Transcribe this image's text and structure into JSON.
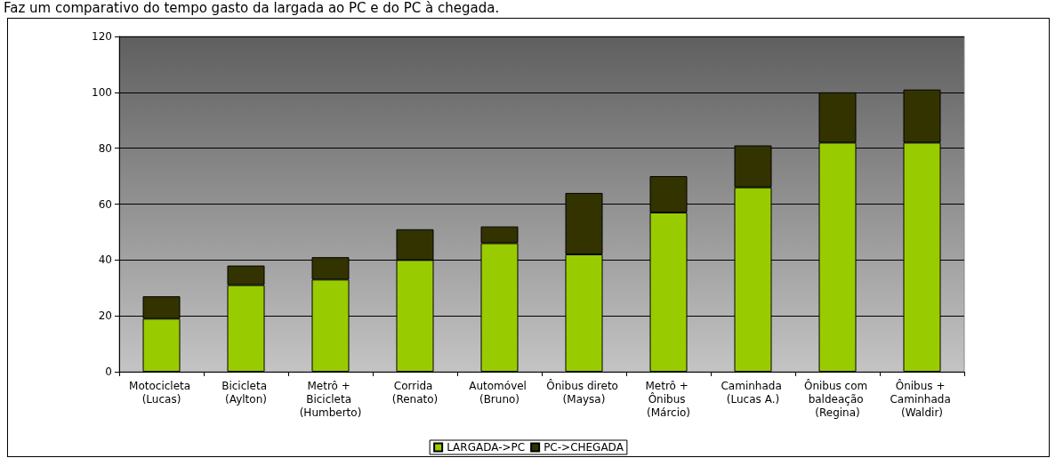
{
  "chart_data": {
    "type": "bar",
    "title": "Faz um comparativo do tempo gasto da largada ao PC e do PC à chegada.",
    "categories": [
      "Motocicleta (Lucas)",
      "Bicicleta (Aylton)",
      "Metrô + Bicicleta (Humberto)",
      "Corrida (Renato)",
      "Automóvel (Bruno)",
      "Ônibus direto (Maysa)",
      "Metrô + Ônibus (Márcio)",
      "Caminhada (Lucas A.)",
      "Ônibus com baldeação (Regina)",
      "Ônibus + Caminhada (Waldir)"
    ],
    "series": [
      {
        "name": "LARGADA->PC",
        "color": "#99cc00",
        "values": [
          19,
          31,
          33,
          40,
          46,
          42,
          57,
          66,
          82,
          82
        ]
      },
      {
        "name": "PC->CHEGADA",
        "color": "#333300",
        "values": [
          8,
          7,
          8,
          11,
          6,
          22,
          13,
          15,
          18,
          19
        ]
      }
    ],
    "stacked": true,
    "ylim": [
      0,
      120
    ],
    "yticks": [
      0,
      20,
      40,
      60,
      80,
      100,
      120
    ],
    "grid": "y",
    "legend": "bottom"
  }
}
